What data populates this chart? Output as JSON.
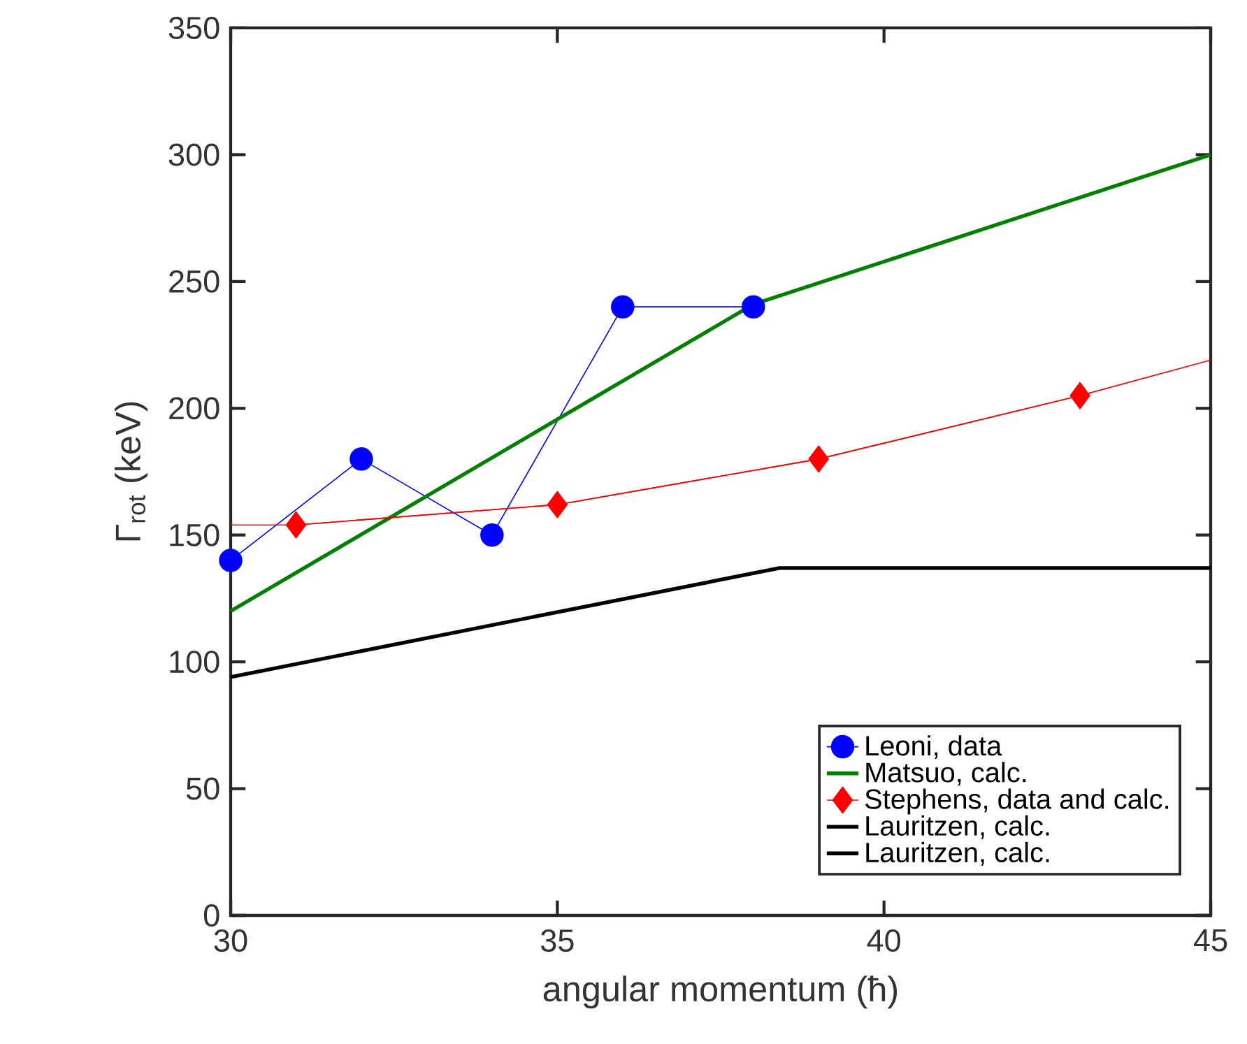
{
  "chart_data": {
    "type": "line",
    "xlabel": "angular momentum (ħ)",
    "ylabel": "Γ$_{rot}$ (keV)",
    "xlim": [
      30,
      45
    ],
    "xticks": [
      30,
      35,
      40,
      45
    ],
    "ylim": [
      0,
      350
    ],
    "yticks": [
      0,
      50,
      100,
      150,
      200,
      250,
      300,
      350
    ],
    "grid": false,
    "legend": "bottom right",
    "series": [
      {
        "name": "Leoni, data",
        "color": "#0000ff",
        "marker": "circle",
        "x": [
          30,
          32,
          34,
          36,
          38
        ],
        "values": [
          140,
          180,
          150,
          240,
          240
        ]
      },
      {
        "name": "Matsuo, calc.",
        "color": "#008000",
        "marker": "none",
        "x": [
          30,
          38,
          45
        ],
        "values": [
          120,
          241,
          300
        ]
      },
      {
        "name": "Stephens, data and calc.",
        "color": "#ff0000",
        "marker": "diamond",
        "x": [
          31,
          35,
          39,
          43
        ],
        "values": [
          154,
          162,
          180,
          205
        ]
      },
      {
        "color": "#ff0000",
        "marker": "none",
        "x": [
          30,
          31,
          35,
          39,
          43,
          45
        ],
        "values": [
          154,
          154,
          162,
          180,
          205,
          219
        ]
      },
      {
        "name": "Lauritzen, calc.",
        "color": "#000000",
        "marker": "none",
        "x": [
          30,
          38.4,
          45
        ],
        "values": [
          94,
          137,
          137
        ]
      },
      {
        "name": "Lauritzen, calc.",
        "color": "#000000",
        "marker": "none"
      }
    ]
  }
}
